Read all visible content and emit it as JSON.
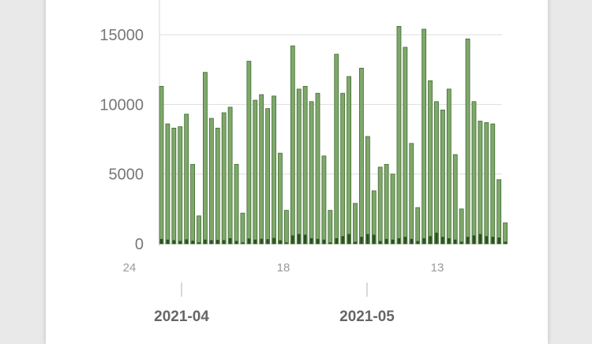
{
  "chart_data": {
    "type": "bar",
    "title": "",
    "xlabel": "",
    "ylabel": "",
    "ylim": [
      0,
      16000
    ],
    "yticks": [
      0,
      5000,
      10000,
      15000
    ],
    "grid": true,
    "colors": {
      "primary": "#7fa86b",
      "primary_stroke": "#3f6b2e",
      "secondary": "#2d4f22"
    },
    "x_tick_labels": [
      "24",
      "18",
      "13"
    ],
    "month_labels": [
      "2021-04",
      "2021-05"
    ],
    "series": [
      {
        "values": [
          11300,
          8600,
          8300,
          8400,
          9300,
          5700,
          2000,
          12300,
          9000,
          8300,
          9400,
          9800,
          5700,
          2200,
          13100,
          10300,
          10700,
          9700,
          10600,
          6500,
          2400,
          14200,
          11100,
          11300,
          10200,
          10800,
          6300,
          2400,
          13600,
          10800,
          12000,
          2900,
          12600,
          7700,
          3800,
          5500,
          5700,
          5000,
          15600,
          14100,
          7200,
          2600,
          15400,
          11700,
          10200,
          9600,
          11100,
          6400,
          2500,
          14700,
          10200,
          8800,
          8700,
          8600,
          4600,
          1500
        ]
      },
      {
        "values": [
          350,
          300,
          250,
          200,
          320,
          220,
          100,
          300,
          260,
          280,
          260,
          400,
          200,
          100,
          380,
          300,
          360,
          330,
          420,
          250,
          100,
          600,
          700,
          650,
          400,
          350,
          300,
          100,
          400,
          550,
          700,
          150,
          500,
          700,
          650,
          200,
          350,
          300,
          400,
          500,
          350,
          200,
          400,
          550,
          800,
          500,
          400,
          300,
          150,
          500,
          600,
          700,
          550,
          500,
          450,
          150
        ]
      }
    ]
  }
}
